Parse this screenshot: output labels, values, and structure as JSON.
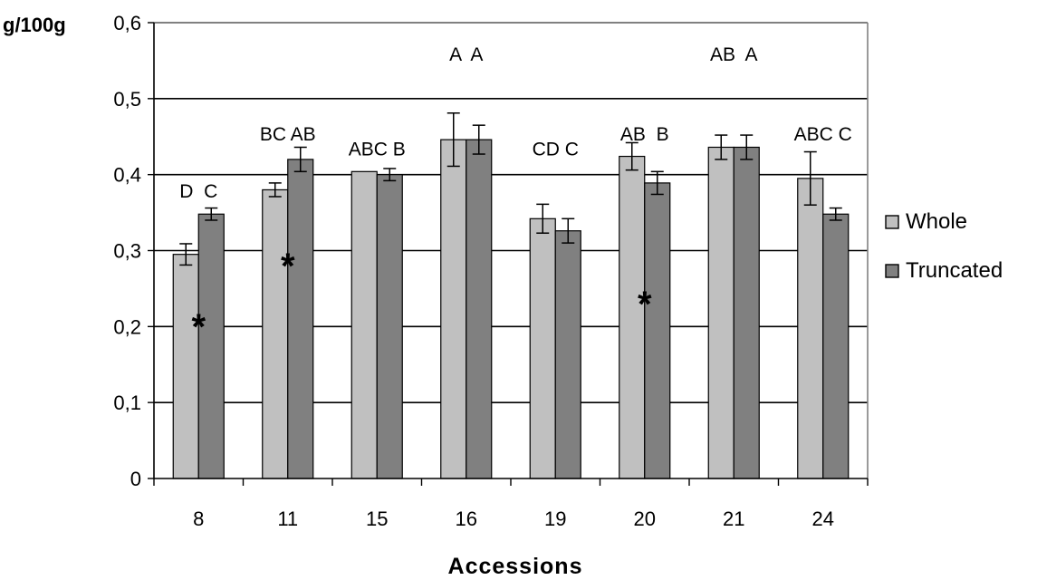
{
  "chart_data": {
    "type": "bar",
    "ylabel": "g/100g",
    "xlabel": "Accessions",
    "categories": [
      "8",
      "11",
      "15",
      "16",
      "19",
      "20",
      "21",
      "24"
    ],
    "ylim": [
      0,
      0.6
    ],
    "yticks": [
      "0",
      "0,1",
      "0,2",
      "0,3",
      "0,4",
      "0,5",
      "0,6"
    ],
    "grid": true,
    "legend_position": "right",
    "series": [
      {
        "name": "Whole",
        "color": "#c0c0c0",
        "values": [
          0.295,
          0.38,
          0.404,
          0.446,
          0.342,
          0.424,
          0.436,
          0.395
        ],
        "errors": [
          0.014,
          0.009,
          0.0,
          0.035,
          0.019,
          0.018,
          0.016,
          0.035
        ]
      },
      {
        "name": "Truncated",
        "color": "#808080",
        "values": [
          0.348,
          0.42,
          0.4,
          0.446,
          0.326,
          0.389,
          0.436,
          0.348
        ],
        "errors": [
          0.008,
          0.016,
          0.008,
          0.019,
          0.016,
          0.015,
          0.016,
          0.008
        ]
      }
    ],
    "annotations": [
      {
        "text": "D  C",
        "category": "8",
        "y": 0.37
      },
      {
        "text": "BC AB",
        "category": "11",
        "y": 0.445
      },
      {
        "text": "ABC B",
        "category": "15",
        "y": 0.425
      },
      {
        "text": "A  A",
        "category": "16",
        "y": 0.55
      },
      {
        "text": "CD C",
        "category": "19",
        "y": 0.425
      },
      {
        "text": "AB  B",
        "category": "20",
        "y": 0.445
      },
      {
        "text": "AB  A",
        "category": "21",
        "y": 0.55
      },
      {
        "text": "ABC C",
        "category": "24",
        "y": 0.445
      }
    ],
    "markers": [
      {
        "text": "*",
        "category": "8",
        "y": 0.205
      },
      {
        "text": "*",
        "category": "11",
        "y": 0.285
      },
      {
        "text": "*",
        "category": "20",
        "y": 0.235
      }
    ]
  }
}
